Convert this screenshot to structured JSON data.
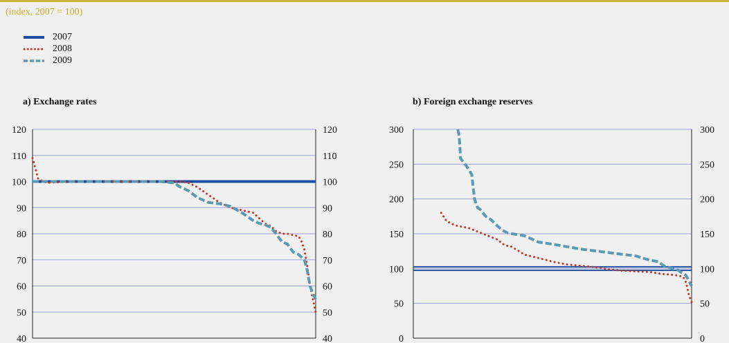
{
  "header": {
    "subtitle": "(index, 2007 = 100)"
  },
  "legend": [
    {
      "label": "2007",
      "color": "#1f4ea1",
      "style": "solid"
    },
    {
      "label": "2008",
      "color": "#c0392b",
      "style": "dotted"
    },
    {
      "label": "2009",
      "color": "#5b9ab0",
      "style": "dashed"
    }
  ],
  "chart_data": [
    {
      "type": "line",
      "title": "a) Exchange rates",
      "xlabel": "",
      "ylabel": "",
      "ylim": [
        40,
        120
      ],
      "yticks": [
        40,
        50,
        60,
        70,
        80,
        90,
        100,
        110,
        120
      ],
      "grid": true,
      "x": [
        0,
        0.02,
        0.05,
        0.1,
        0.2,
        0.3,
        0.4,
        0.45,
        0.5,
        0.52,
        0.55,
        0.58,
        0.62,
        0.66,
        0.7,
        0.74,
        0.78,
        0.8,
        0.82,
        0.84,
        0.86,
        0.88,
        0.9,
        0.92,
        0.94,
        0.95,
        0.96,
        0.97,
        0.98,
        0.99,
        1.0
      ],
      "series": [
        {
          "name": "2007",
          "values": [
            100,
            100,
            100,
            100,
            100,
            100,
            100,
            100,
            100,
            100,
            100,
            100,
            100,
            100,
            100,
            100,
            100,
            100,
            100,
            100,
            100,
            100,
            100,
            100,
            100,
            100,
            100,
            100,
            100,
            100,
            100
          ]
        },
        {
          "name": "2008",
          "values": [
            109,
            101,
            99.5,
            99.8,
            100,
            100,
            100,
            100,
            100,
            100,
            99.5,
            98,
            95,
            92,
            90,
            89,
            88,
            86,
            84,
            83,
            81,
            80,
            80,
            79.5,
            79,
            77,
            74,
            68,
            60,
            55,
            50
          ]
        },
        {
          "name": "2009",
          "values": [
            100,
            100,
            100,
            100,
            100,
            100,
            100,
            100,
            99.5,
            98,
            96.5,
            94,
            92,
            91.5,
            90.5,
            88,
            85,
            84,
            83.5,
            82.5,
            80,
            77,
            76,
            73,
            72,
            71,
            70,
            66,
            60,
            57,
            55
          ]
        }
      ]
    },
    {
      "type": "line",
      "title": "b) Foreign exchange reserves",
      "xlabel": "",
      "ylabel": "",
      "ylim": [
        0,
        300
      ],
      "yticks": [
        0,
        50,
        100,
        150,
        200,
        250,
        300
      ],
      "grid": true,
      "series": [
        {
          "name": "2007",
          "x": [
            0,
            1
          ],
          "values": [
            100,
            100
          ]
        },
        {
          "name": "2008",
          "x": [
            0.1,
            0.12,
            0.15,
            0.2,
            0.25,
            0.3,
            0.33,
            0.35,
            0.4,
            0.45,
            0.5,
            0.55,
            0.6,
            0.65,
            0.7,
            0.75,
            0.8,
            0.85,
            0.9,
            0.93,
            0.95,
            0.97,
            0.98,
            0.99,
            1.0
          ],
          "values": [
            180,
            168,
            162,
            158,
            150,
            142,
            133,
            132,
            120,
            115,
            110,
            106,
            104,
            102,
            99,
            97,
            96,
            95,
            92,
            91,
            90,
            88,
            80,
            62,
            52
          ]
        },
        {
          "name": "2009",
          "x": [
            0.16,
            0.165,
            0.17,
            0.19,
            0.21,
            0.22,
            0.23,
            0.24,
            0.26,
            0.28,
            0.3,
            0.32,
            0.34,
            0.4,
            0.45,
            0.5,
            0.6,
            0.7,
            0.8,
            0.85,
            0.88,
            0.9,
            0.93,
            0.95,
            0.98,
            1.0
          ],
          "values": [
            300,
            290,
            258,
            248,
            235,
            200,
            188,
            185,
            175,
            170,
            162,
            155,
            151,
            147,
            138,
            135,
            128,
            123,
            118,
            112,
            110,
            104,
            100,
            98,
            90,
            75
          ]
        }
      ]
    }
  ]
}
